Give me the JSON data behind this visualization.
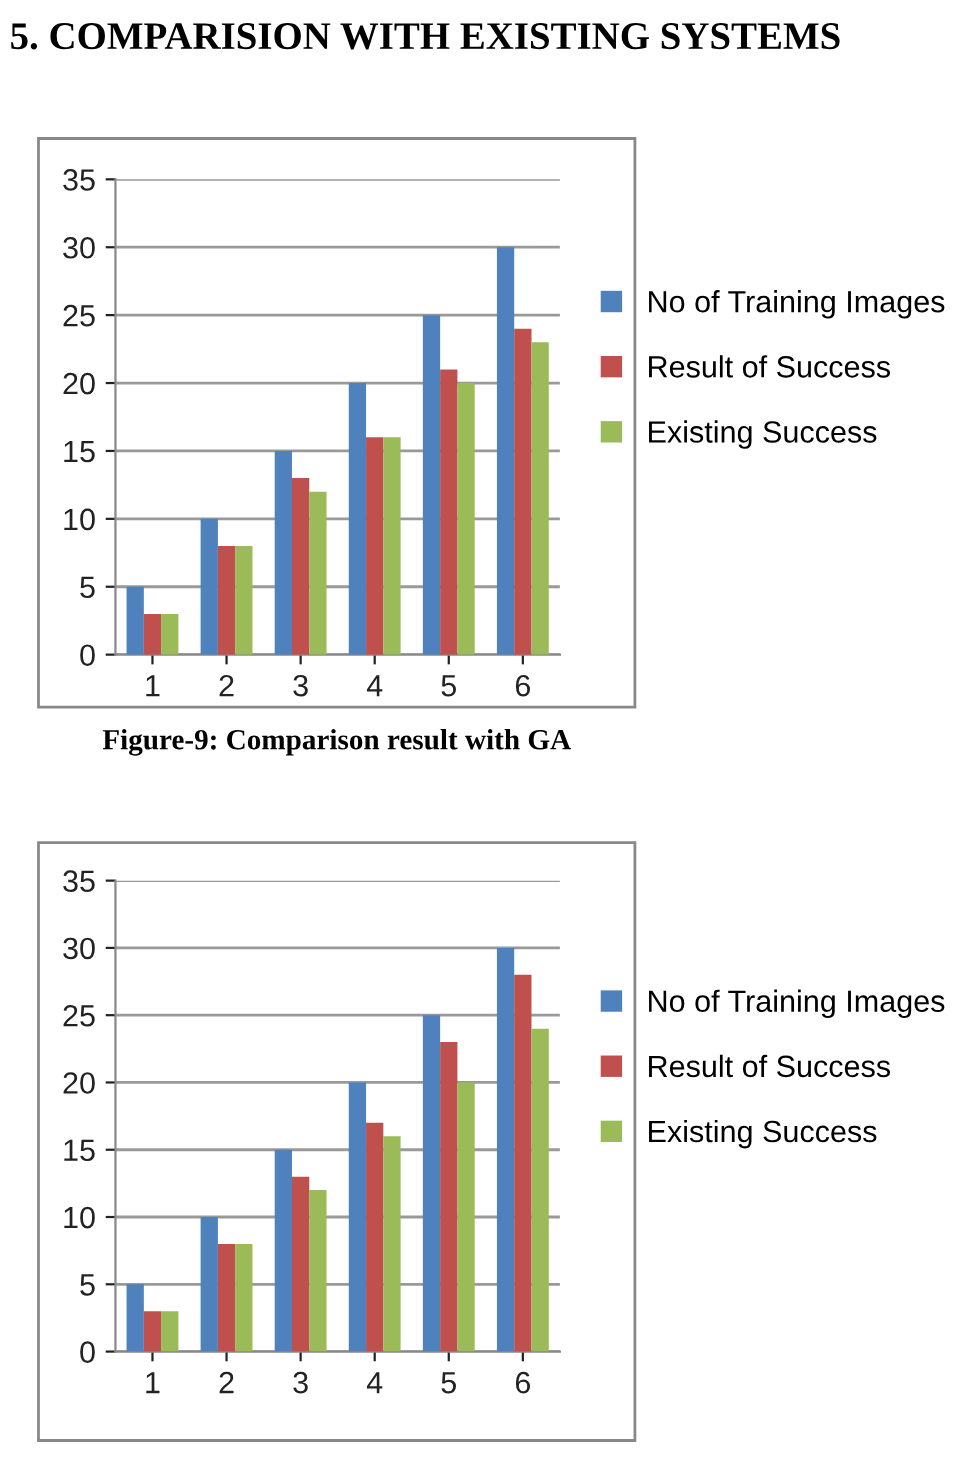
{
  "chart_data": [
    {
      "type": "bar",
      "title": "5. COMPARISION WITH EXISTING SYSTEMS",
      "categories": [
        "1",
        "2",
        "3",
        "4",
        "5",
        "6"
      ],
      "series": [
        {
          "name": "No of Training Images",
          "color": "#4f81bd",
          "values": [
            5,
            10,
            15,
            20,
            25,
            30
          ]
        },
        {
          "name": "Result of Success",
          "color": "#c0504d",
          "values": [
            3,
            8,
            13,
            16,
            21,
            24
          ]
        },
        {
          "name": "Existing Success",
          "color": "#9bbb59",
          "values": [
            3,
            8,
            12,
            16,
            20,
            23
          ]
        }
      ],
      "ylim": [
        0,
        35
      ],
      "yticks": [
        0,
        5,
        10,
        15,
        20,
        25,
        30,
        35
      ],
      "grid": "y",
      "legend": "right",
      "annotations": [
        "Figure-9: Comparison result with GA"
      ]
    },
    {
      "type": "bar",
      "categories": [
        "1",
        "2",
        "3",
        "4",
        "5",
        "6"
      ],
      "series": [
        {
          "name": "No of Training Images",
          "color": "#4f81bd",
          "values": [
            5,
            10,
            15,
            20,
            25,
            30
          ]
        },
        {
          "name": "Result of Success",
          "color": "#c0504d",
          "values": [
            3,
            8,
            13,
            17,
            23,
            28
          ]
        },
        {
          "name": "Existing Success",
          "color": "#9bbb59",
          "values": [
            3,
            8,
            12,
            16,
            20,
            24
          ]
        }
      ],
      "ylim": [
        0,
        35
      ],
      "yticks": [
        0,
        5,
        10,
        15,
        20,
        25,
        30,
        35
      ],
      "grid": "y",
      "legend": "right"
    }
  ]
}
